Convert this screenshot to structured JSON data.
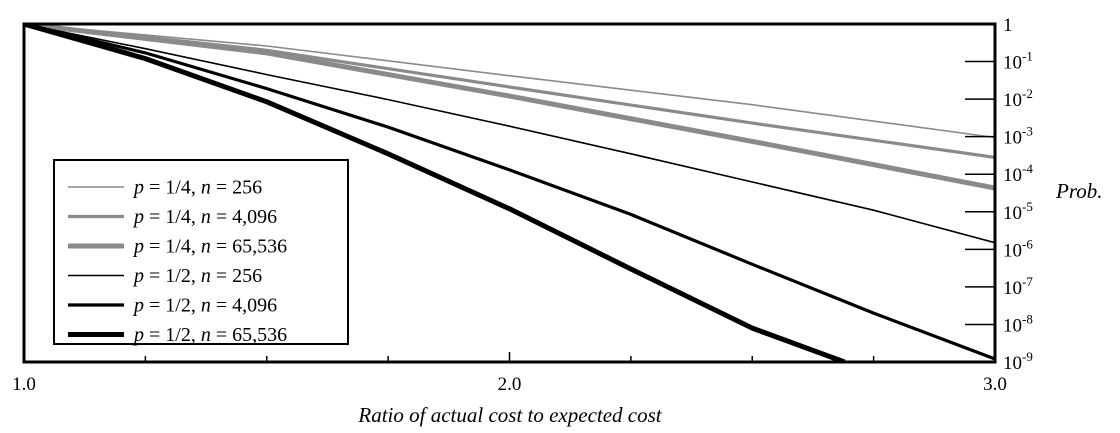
{
  "chart_data": {
    "type": "line",
    "title": "",
    "xlabel": "Ratio of actual cost to expected cost",
    "ylabel": "Prob.",
    "x_scale": "linear",
    "y_scale": "log",
    "xlim": [
      1.0,
      3.0
    ],
    "ylim": [
      1e-09,
      1
    ],
    "x_ticks": [
      {
        "value": 1.0,
        "label": "1.0"
      },
      {
        "value": 2.0,
        "label": "2.0"
      },
      {
        "value": 3.0,
        "label": "3.0"
      }
    ],
    "x_minor_ticks": [
      1.25,
      1.5,
      1.75,
      2.25,
      2.5,
      2.75
    ],
    "y_ticks": [
      {
        "value": 1,
        "base": "1",
        "exp": ""
      },
      {
        "value": 0.1,
        "base": "10",
        "exp": "-1"
      },
      {
        "value": 0.01,
        "base": "10",
        "exp": "-2"
      },
      {
        "value": 0.001,
        "base": "10",
        "exp": "-3"
      },
      {
        "value": 0.0001,
        "base": "10",
        "exp": "-4"
      },
      {
        "value": 1e-05,
        "base": "10",
        "exp": "-5"
      },
      {
        "value": 1e-06,
        "base": "10",
        "exp": "-6"
      },
      {
        "value": 1e-07,
        "base": "10",
        "exp": "-7"
      },
      {
        "value": 1e-08,
        "base": "10",
        "exp": "-8"
      },
      {
        "value": 1e-09,
        "base": "10",
        "exp": "-9"
      }
    ],
    "grid": false,
    "legend_position": "lower-left",
    "series": [
      {
        "p": "1/4",
        "n": "256",
        "color": "#8a8a8a",
        "weight": "thin",
        "x": [
          1.0,
          1.5,
          2.0,
          2.5,
          3.0
        ],
        "y": [
          1.0,
          0.26,
          0.042,
          0.0071,
          0.00095
        ]
      },
      {
        "p": "1/4",
        "n": "4,096",
        "color": "#8a8a8a",
        "weight": "medium",
        "x": [
          1.0,
          1.5,
          2.0,
          2.5,
          3.0
        ],
        "y": [
          1.0,
          0.2,
          0.021,
          0.0023,
          0.00028
        ]
      },
      {
        "p": "1/4",
        "n": "65,536",
        "color": "#8a8a8a",
        "weight": "thick",
        "x": [
          1.0,
          1.5,
          2.0,
          2.5,
          3.0
        ],
        "y": [
          1.0,
          0.17,
          0.012,
          0.00075,
          4.3e-05
        ]
      },
      {
        "p": "1/2",
        "n": "256",
        "color": "#000000",
        "weight": "thin",
        "x": [
          1.0,
          1.25,
          1.5,
          1.75,
          2.0,
          2.25,
          2.5,
          2.75,
          3.0
        ],
        "y": [
          1.0,
          0.22,
          0.045,
          0.0097,
          0.0019,
          0.00035,
          6.2e-05,
          1.1e-05,
          1.5e-06
        ]
      },
      {
        "p": "1/2",
        "n": "4,096",
        "color": "#000000",
        "weight": "medium",
        "x": [
          1.0,
          1.25,
          1.5,
          1.75,
          2.0,
          2.25,
          2.5,
          2.75,
          3.0
        ],
        "y": [
          1.0,
          0.17,
          0.019,
          0.0018,
          0.00013,
          8.5e-06,
          4e-07,
          2e-08,
          1.2e-09
        ]
      },
      {
        "p": "1/2",
        "n": "65,536",
        "color": "#000000",
        "weight": "thick",
        "x": [
          1.0,
          1.25,
          1.5,
          1.75,
          2.0,
          2.25,
          2.5,
          2.69
        ],
        "y": [
          1.0,
          0.12,
          0.0085,
          0.00035,
          1.2e-05,
          3e-07,
          8e-09,
          1e-09
        ]
      }
    ]
  }
}
